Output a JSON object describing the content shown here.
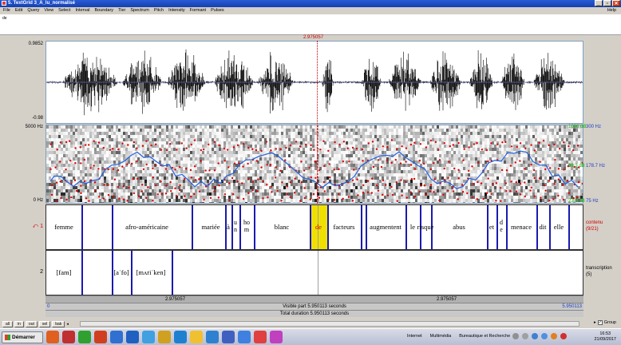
{
  "window": {
    "title": "5. TextGrid 3_A_lu_normalisé",
    "minimize": "_",
    "maximize": "▫",
    "close": "✕"
  },
  "menu": {
    "items": [
      "File",
      "Edit",
      "Query",
      "View",
      "Select",
      "Interval",
      "Boundary",
      "Tier",
      "Spectrum",
      "Pitch",
      "Intensity",
      "Formant",
      "Pulses"
    ],
    "help": "Help"
  },
  "textline": {
    "value": "de"
  },
  "cursor": {
    "time_label": "2.975057"
  },
  "waveform": {
    "y_max": "0.9852",
    "y_min": "-0.98"
  },
  "spectrogram": {
    "freq_top": "5000 Hz",
    "freq_bottom": "0 Hz",
    "pitch_top": "300 Hz",
    "pitch_mid": "178.7 Hz",
    "pitch_bottom": "75 Hz",
    "green_top": "1000 dB",
    "green_mid": "89.3 dB",
    "green_bottom": "23.8 dB"
  },
  "tiers": [
    {
      "number": "1",
      "name": "contenu",
      "count": "(9/21)",
      "intervals": [
        {
          "label": "femme"
        },
        {
          "label": "afro-américaine"
        },
        {
          "label": "mariée"
        },
        {
          "label": "à"
        },
        {
          "label": "u\nn"
        },
        {
          "label": "ho\nm"
        },
        {
          "label": "blanc"
        },
        {
          "label": "de",
          "selected": true
        },
        {
          "label": "facteurs"
        },
        {
          "label": "augmentent"
        },
        {
          "label": "le"
        },
        {
          "label": "risque"
        },
        {
          "label": "abus"
        },
        {
          "label": "et"
        },
        {
          "label": "d\ne"
        },
        {
          "label": "menace"
        },
        {
          "label": "dit"
        },
        {
          "label": "elle"
        }
      ]
    },
    {
      "number": "2",
      "name": "transcription",
      "count": "(5)",
      "intervals": [
        {
          "label": "[fam]"
        },
        {
          "label": "[aˈfo]"
        },
        {
          "label": "[mʌriˈken]"
        }
      ]
    }
  ],
  "time_rows": {
    "left_time": "2.975057",
    "right_time": "2.975057",
    "visible_start": "0",
    "visible_label": "Visible part 5.950113 seconds",
    "visible_end": "5.950113",
    "total_label": "Total duration 5.950113 seconds"
  },
  "zoom_buttons": [
    "all",
    "in",
    "out",
    "sel",
    "bak"
  ],
  "group": {
    "label": "Group",
    "checked": "✓"
  },
  "taskbar": {
    "start": "Démarrer",
    "menus": [
      "Internet",
      "Multimédia",
      "Bureautique et Recherche"
    ],
    "clock_time": "16:53",
    "clock_date": "21/09/2017",
    "icon_colors": [
      "#e06020",
      "#c03030",
      "#30a030",
      "#d04020",
      "#3070d0",
      "#2060c0",
      "#40a0e0",
      "#d0a020",
      "#2080d0",
      "#f0c030",
      "#3080d0",
      "#4060c0",
      "#4080e0",
      "#e04040",
      "#c040c0"
    ]
  }
}
